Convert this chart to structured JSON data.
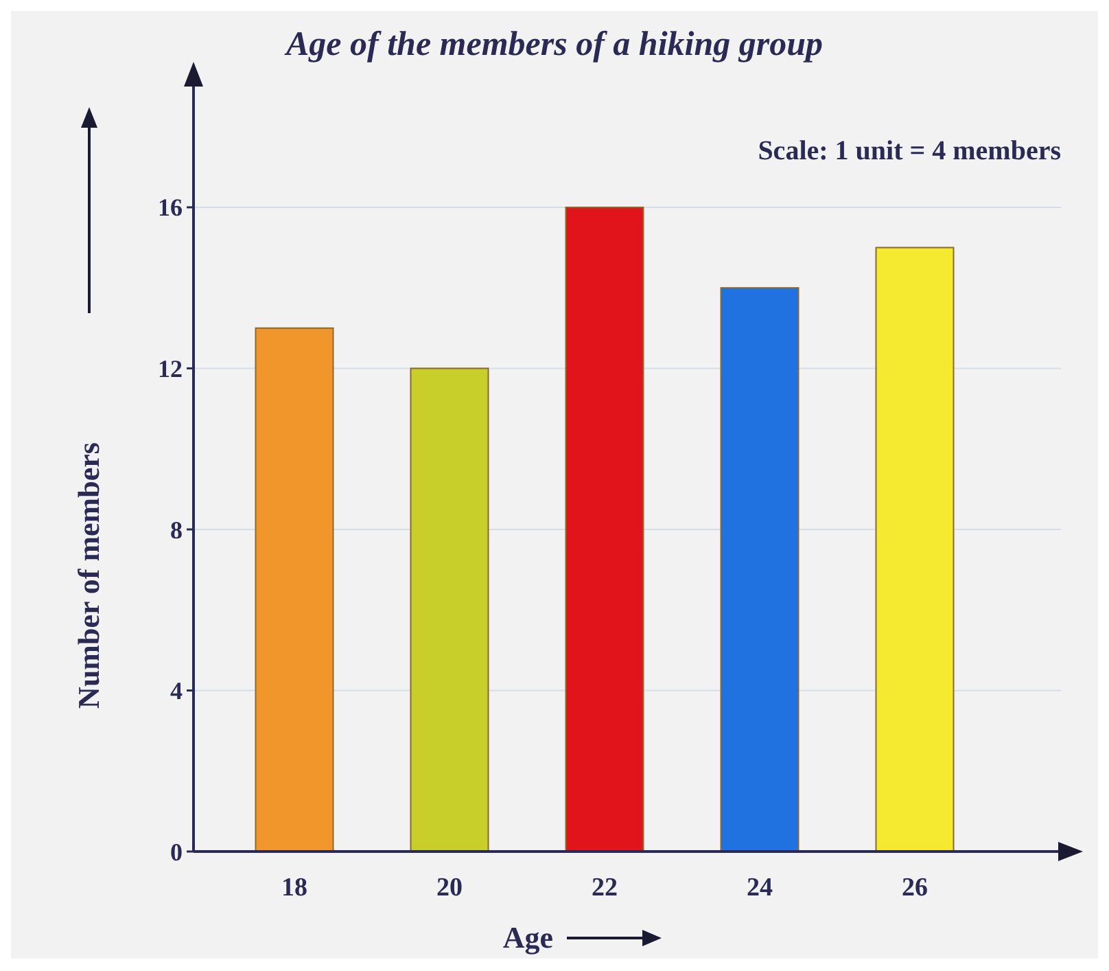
{
  "chart_data": {
    "type": "bar",
    "title": "Age of the members of a hiking group",
    "xlabel": "Age",
    "ylabel": "Number of members",
    "categories": [
      "18",
      "20",
      "22",
      "24",
      "26"
    ],
    "values": [
      13,
      12,
      16,
      14,
      15
    ],
    "colors": [
      "#f0962a",
      "#c8cf2a",
      "#e0141a",
      "#1f72e0",
      "#f5ea30"
    ],
    "ylim": [
      0,
      19
    ],
    "yticks": [
      0,
      4,
      8,
      12,
      16
    ],
    "grid": "y",
    "annotations": [
      "Scale: 1 unit = 4 members"
    ]
  }
}
